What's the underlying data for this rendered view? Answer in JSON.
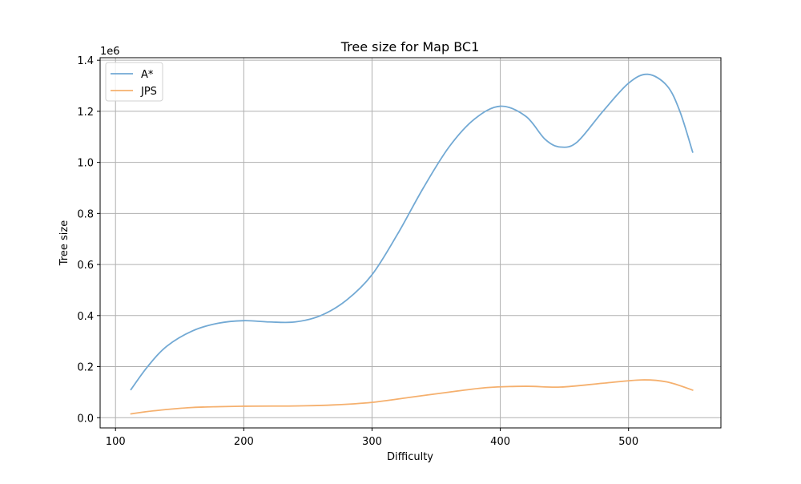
{
  "chart_data": {
    "type": "line",
    "title": "Tree size for Map BC1",
    "xlabel": "Difficulty",
    "ylabel": "Tree size",
    "y_offset_label": "1e6",
    "xlim": [
      88,
      572
    ],
    "ylim": [
      -0.04,
      1.41
    ],
    "x_ticks": [
      100,
      200,
      300,
      400,
      500
    ],
    "x_tick_labels": [
      "100",
      "200",
      "300",
      "400",
      "500"
    ],
    "y_ticks": [
      0.0,
      0.2,
      0.4,
      0.6,
      0.8,
      1.0,
      1.2,
      1.4
    ],
    "y_tick_labels": [
      "0.0",
      "0.2",
      "0.4",
      "0.6",
      "0.8",
      "1.0",
      "1.2",
      "1.4"
    ],
    "grid": true,
    "legend_position": "top-left",
    "series": [
      {
        "name": "A*",
        "color": "#72a9d4",
        "x": [
          112,
          125,
          140,
          160,
          180,
          200,
          220,
          240,
          260,
          280,
          300,
          320,
          340,
          360,
          380,
          400,
          420,
          435,
          447,
          460,
          480,
          500,
          515,
          530,
          540,
          550
        ],
        "y": [
          0.11,
          0.2,
          0.28,
          0.34,
          0.37,
          0.38,
          0.375,
          0.375,
          0.4,
          0.46,
          0.56,
          0.72,
          0.9,
          1.06,
          1.17,
          1.22,
          1.18,
          1.09,
          1.06,
          1.08,
          1.2,
          1.31,
          1.345,
          1.3,
          1.2,
          1.04
        ]
      },
      {
        "name": "JPS",
        "color": "#f5b06e",
        "x": [
          112,
          130,
          160,
          200,
          240,
          270,
          300,
          330,
          360,
          390,
          420,
          447,
          480,
          510,
          530,
          550
        ],
        "y": [
          0.015,
          0.027,
          0.04,
          0.045,
          0.046,
          0.05,
          0.06,
          0.08,
          0.1,
          0.118,
          0.123,
          0.12,
          0.135,
          0.148,
          0.14,
          0.108
        ]
      }
    ]
  }
}
